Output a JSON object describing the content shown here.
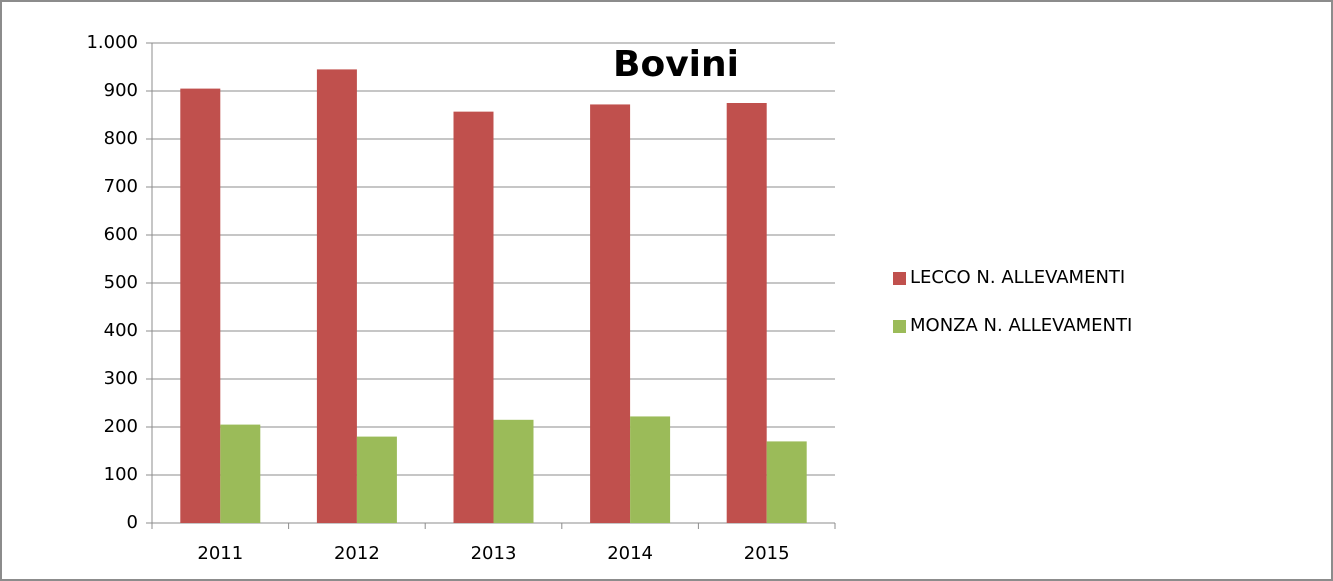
{
  "chart_data": {
    "type": "bar",
    "title": "Bovini",
    "categories": [
      "2011",
      "2012",
      "2013",
      "2014",
      "2015"
    ],
    "series": [
      {
        "name": "LECCO N. ALLEVAMENTI",
        "color": "#c0504d",
        "values": [
          905,
          945,
          857,
          872,
          875
        ]
      },
      {
        "name": "MONZA N. ALLEVAMENTI",
        "color": "#9bbb59",
        "values": [
          205,
          180,
          215,
          222,
          170
        ]
      }
    ],
    "ylim": [
      0,
      1000
    ],
    "yticks": [
      0,
      100,
      200,
      300,
      400,
      500,
      600,
      700,
      800,
      900,
      {
        "value": 1000,
        "label": "1.000"
      }
    ],
    "grid": true,
    "legend": "right"
  }
}
